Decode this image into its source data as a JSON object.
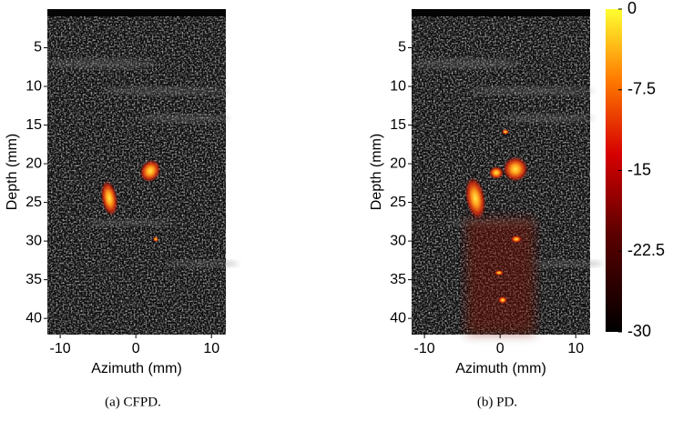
{
  "chart_data": [
    {
      "type": "image",
      "xlabel": "Azimuth (mm)",
      "ylabel": "Depth (mm)",
      "xlim": [
        -11.7,
        11.9
      ],
      "ylim": [
        0,
        42.1
      ],
      "yreverse": true,
      "xticks": [
        -10,
        0,
        10
      ],
      "yticks": [
        5,
        10,
        15,
        20,
        25,
        30,
        35,
        40
      ],
      "caption": "(a) CFPD."
    },
    {
      "type": "image",
      "xlabel": "Azimuth (mm)",
      "ylabel": "Depth (mm)",
      "xlim": [
        -11.7,
        11.9
      ],
      "ylim": [
        0,
        42.1
      ],
      "yreverse": true,
      "xticks": [
        -10,
        0,
        10
      ],
      "yticks": [
        5,
        10,
        15,
        20,
        25,
        30,
        35,
        40
      ],
      "caption": "(b) PD."
    }
  ],
  "colorbar": {
    "clim": [
      -30,
      0
    ],
    "ticks": [
      0,
      -7.5,
      -15,
      -22.5,
      -30
    ]
  }
}
